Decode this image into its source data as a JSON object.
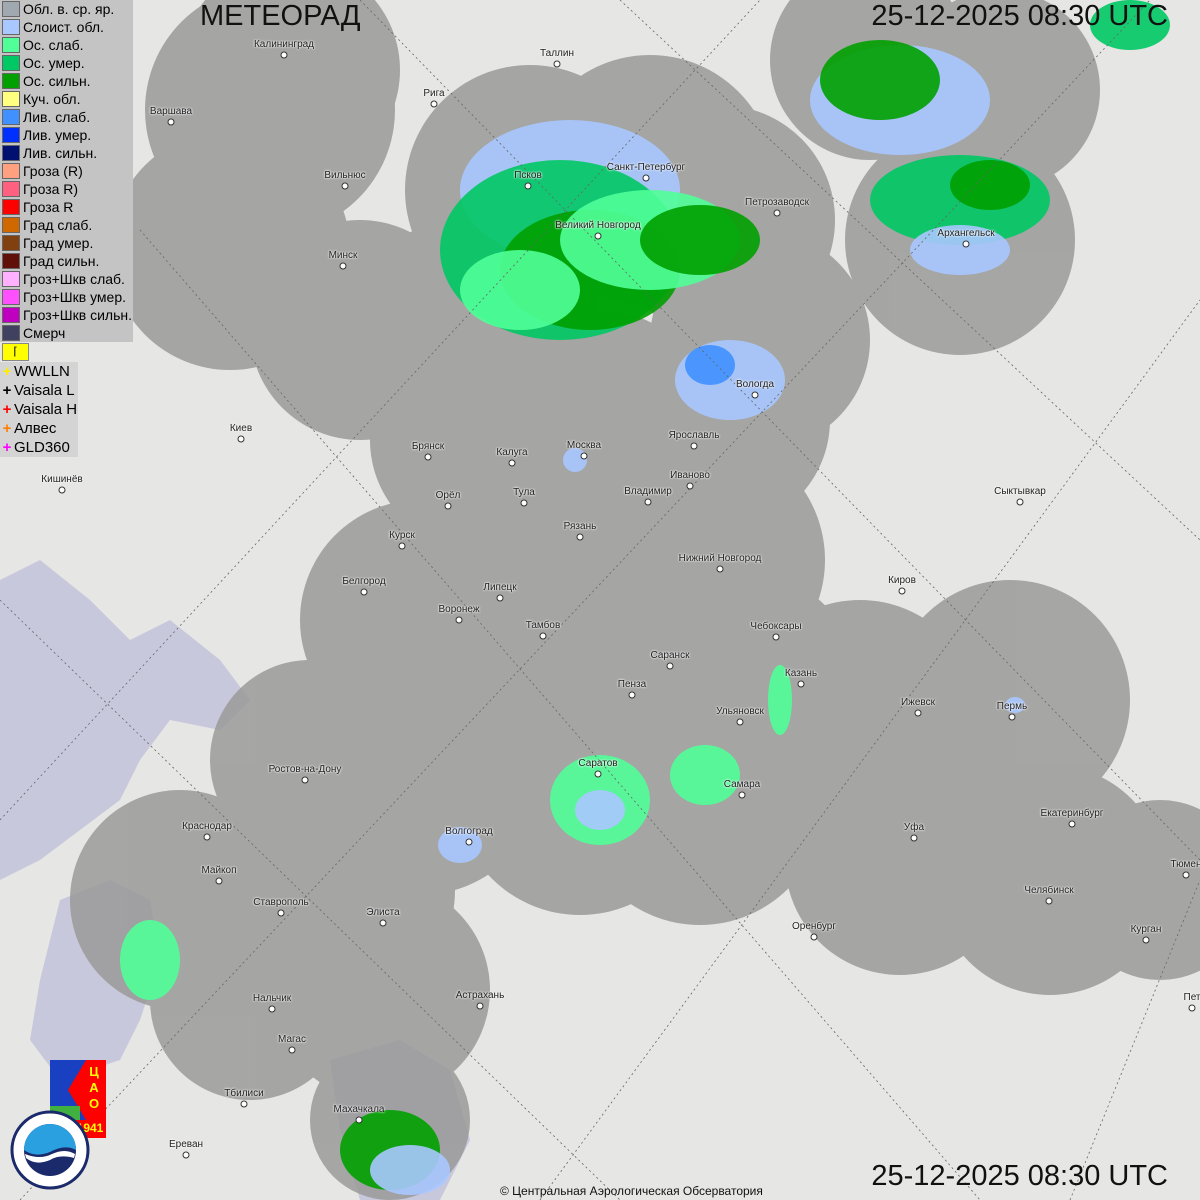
{
  "header": {
    "title": "МЕТЕОРАД",
    "datetime_top": "25-12-2025  08:30 UTC",
    "datetime_bottom": "25-12-2025  08:30 UTC"
  },
  "legend": [
    {
      "label": "Обл. в. ср. яр.",
      "color": "#a0a8b0"
    },
    {
      "label": "Слоист. обл.",
      "color": "#a8c8ff"
    },
    {
      "label": "Ос. слаб.",
      "color": "#50ff98"
    },
    {
      "label": "Ос. умер.",
      "color": "#00c864"
    },
    {
      "label": "Ос. сильн.",
      "color": "#00a000"
    },
    {
      "label": "Куч. обл.",
      "color": "#ffff80"
    },
    {
      "label": "Лив. слаб.",
      "color": "#4090ff"
    },
    {
      "label": "Лив. умер.",
      "color": "#0030ff"
    },
    {
      "label": "Лив. сильн.",
      "color": "#001070"
    },
    {
      "label": "Гроза (R)",
      "color": "#ffa080"
    },
    {
      "label": "Гроза R)",
      "color": "#ff6080"
    },
    {
      "label": "Гроза R",
      "color": "#ff0000"
    },
    {
      "label": "Град слаб.",
      "color": "#d06800"
    },
    {
      "label": "Град умер.",
      "color": "#804010"
    },
    {
      "label": "Град сильн.",
      "color": "#601008"
    },
    {
      "label": "Гроз+Шкв слаб.",
      "color": "#ffb0ff"
    },
    {
      "label": "Гроз+Шкв умер.",
      "color": "#ff50ff"
    },
    {
      "label": "Гроз+Шкв сильн.",
      "color": "#c000c0"
    },
    {
      "label": "Смерч",
      "color": "#404060"
    }
  ],
  "lightning": [
    {
      "label": "WWLLN",
      "color": "#ffee00"
    },
    {
      "label": "Vaisala L",
      "color": "#000000"
    },
    {
      "label": "Vaisala H",
      "color": "#ff0000"
    },
    {
      "label": "Алвес",
      "color": "#ff8000"
    },
    {
      "label": "GLD360",
      "color": "#ff00ff"
    }
  ],
  "cities": [
    "Калининград",
    "Таллин",
    "Рига",
    "Варшава",
    "Санкт-Петербург",
    "Псков",
    "Петрозаводск",
    "Архангельск",
    "Вильнюс",
    "Великий Новгород",
    "Минск",
    "Вологда",
    "Киев",
    "Брянск",
    "Калуга",
    "Москва",
    "Ярославль",
    "Иваново",
    "Кишинёв",
    "Орёл",
    "Тула",
    "Владимир",
    "Сыктывкар",
    "Рязань",
    "Курск",
    "Нижний Новгород",
    "Киров",
    "Белгород",
    "Липецк",
    "Воронеж",
    "Тамбов",
    "Чебоксары",
    "Саранск",
    "Казань",
    "Пенза",
    "Ижевск",
    "Пермь",
    "Ульяновск",
    "Ростов-на-Дону",
    "Саратов",
    "Самара",
    "Краснодар",
    "Волгоград",
    "Уфа",
    "Екатеринбург",
    "Майкоп",
    "Тюмен",
    "Челябинск",
    "Ставрополь",
    "Элиста",
    "Оренбург",
    "Курган",
    "Астрахань",
    "Нальчик",
    "Пет",
    "Магас",
    "Тбилиси",
    "Махачкала",
    "Ереван"
  ],
  "logos": {
    "cao": "ЦАО 1941",
    "roshydromet": "РОСГИДРОМЕТ ROSHYDROMET"
  },
  "copyright": "© Центральная Аэрологическая Обсерватория"
}
